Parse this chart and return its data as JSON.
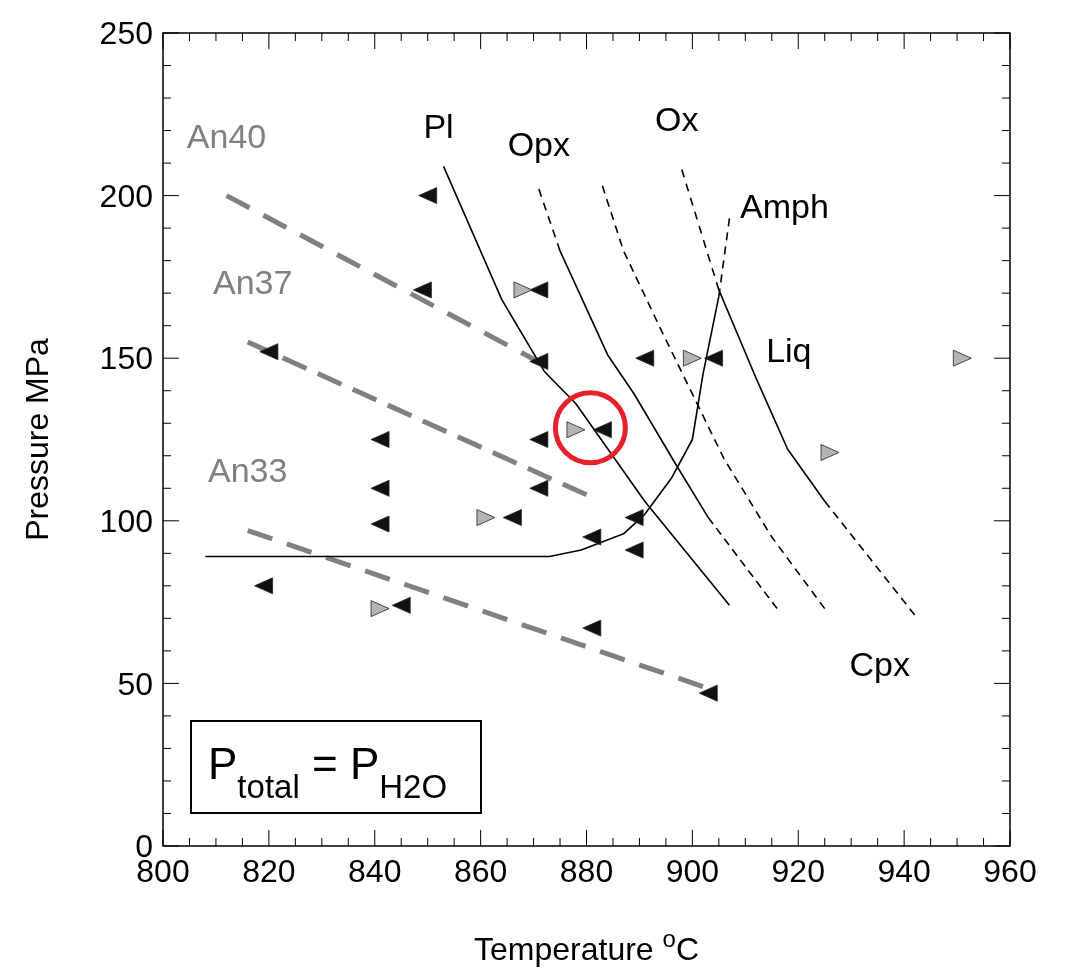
{
  "chart_data": {
    "type": "scatter",
    "xlabel": "Temperature $^{o}$C",
    "ylabel": "Pressure MPa",
    "xlim": [
      800,
      960
    ],
    "ylim": [
      0,
      250
    ],
    "xticks": [
      800,
      {
        "value": 805,
        "label": null
      },
      {
        "value": 810,
        "label": null
      },
      {
        "value": 815,
        "label": null
      },
      820,
      {
        "value": 825,
        "label": null
      },
      {
        "value": 830,
        "label": null
      },
      {
        "value": 835,
        "label": null
      },
      840,
      {
        "value": 845,
        "label": null
      },
      {
        "value": 850,
        "label": null
      },
      {
        "value": 855,
        "label": null
      },
      860,
      {
        "value": 865,
        "label": null
      },
      {
        "value": 870,
        "label": null
      },
      {
        "value": 875,
        "label": null
      },
      880,
      {
        "value": 885,
        "label": null
      },
      {
        "value": 890,
        "label": null
      },
      {
        "value": 895,
        "label": null
      },
      900,
      {
        "value": 905,
        "label": null
      },
      {
        "value": 910,
        "label": null
      },
      {
        "value": 915,
        "label": null
      },
      920,
      {
        "value": 925,
        "label": null
      },
      {
        "value": 930,
        "label": null
      },
      {
        "value": 935,
        "label": null
      },
      940,
      {
        "value": 945,
        "label": null
      },
      {
        "value": 950,
        "label": null
      },
      {
        "value": 955,
        "label": null
      },
      960
    ],
    "yticks": [
      0,
      {
        "value": 10,
        "label": null
      },
      {
        "value": 20,
        "label": null
      },
      {
        "value": 30,
        "label": null
      },
      {
        "value": 40,
        "label": null
      },
      50,
      {
        "value": 60,
        "label": null
      },
      {
        "value": 70,
        "label": null
      },
      {
        "value": 80,
        "label": null
      },
      {
        "value": 90,
        "label": null
      },
      100,
      {
        "value": 110,
        "label": null
      },
      {
        "value": 120,
        "label": null
      },
      {
        "value": 130,
        "label": null
      },
      {
        "value": 140,
        "label": null
      },
      150,
      {
        "value": 160,
        "label": null
      },
      {
        "value": 170,
        "label": null
      },
      {
        "value": 180,
        "label": null
      },
      {
        "value": 190,
        "label": null
      },
      200,
      {
        "value": 210,
        "label": null
      },
      {
        "value": 220,
        "label": null
      },
      {
        "value": 230,
        "label": null
      },
      {
        "value": 240,
        "label": null
      },
      250
    ],
    "grid": false,
    "series": [
      {
        "marker": "triangle",
        "color": "#111111",
        "x": [
          850,
          849,
          871,
          871,
          820,
          841,
          871,
          883,
          841,
          871,
          841,
          866,
          881,
          889,
          889,
          891,
          904,
          819,
          845,
          881,
          903
        ],
        "values": [
          200,
          171,
          171,
          149,
          152,
          125,
          125,
          128,
          110,
          110,
          99,
          101,
          95,
          101,
          91,
          150,
          150,
          80,
          74,
          67,
          47
        ]
      },
      {
        "marker": "triangle",
        "color": "#b4b4b4",
        "x": [
          868,
          878,
          861,
          841,
          900,
          951,
          926
        ],
        "values": [
          171,
          128,
          101,
          73,
          150,
          150,
          121
        ]
      },
      {
        "type": "line",
        "color": "#808080",
        "line_style": "dashed",
        "x": [
          812,
          872
        ],
        "values": [
          200,
          148
        ]
      },
      {
        "type": "line",
        "color": "#808080",
        "line_style": "dashed",
        "x": [
          816,
          880
        ],
        "values": [
          155,
          108
        ]
      },
      {
        "type": "line",
        "color": "#808080",
        "line_style": "dashed",
        "x": [
          816,
          902
        ],
        "values": [
          97,
          49
        ]
      },
      {
        "type": "line",
        "color": "#000000",
        "line_style": "solid",
        "x": [
          853,
          864,
          872,
          878,
          891,
          907
        ],
        "values": [
          209,
          168,
          146,
          136,
          106,
          74
        ]
      },
      {
        "type": "line",
        "color": "#000000",
        "line_style": "dashed",
        "x": [
          871,
          875
        ],
        "values": [
          202,
          183
        ]
      },
      {
        "type": "line",
        "color": "#000000",
        "line_style": "solid",
        "x": [
          875,
          884,
          889,
          897,
          903
        ],
        "values": [
          183,
          151,
          139,
          117,
          101
        ]
      },
      {
        "type": "line",
        "color": "#000000",
        "line_style": "dashed",
        "x": [
          903,
          916
        ],
        "values": [
          101,
          73
        ]
      },
      {
        "type": "line",
        "color": "#000000",
        "line_style": "dashed",
        "x": [
          883,
          887,
          894,
          900,
          906,
          915,
          925
        ],
        "values": [
          203,
          183,
          159,
          139,
          119,
          95,
          73
        ]
      },
      {
        "type": "line",
        "color": "#000000",
        "line_style": "dashed",
        "x": [
          898,
          905
        ],
        "values": [
          208,
          171
        ]
      },
      {
        "type": "line",
        "color": "#000000",
        "line_style": "solid",
        "x": [
          905,
          912,
          918,
          925
        ],
        "values": [
          171,
          144,
          122,
          106
        ]
      },
      {
        "type": "line",
        "color": "#000000",
        "line_style": "dashed",
        "x": [
          925,
          942
        ],
        "values": [
          106,
          71
        ]
      },
      {
        "type": "line",
        "color": "#000000",
        "line_style": "solid",
        "x": [
          808,
          873,
          879,
          887,
          891,
          896,
          900,
          902,
          905
        ],
        "values": [
          89,
          89,
          91,
          96,
          102,
          113,
          125,
          145,
          169
        ]
      },
      {
        "type": "line",
        "color": "#000000",
        "line_style": "dashed",
        "x": [
          905,
          907
        ],
        "values": [
          169,
          193
        ]
      }
    ],
    "annotations": [
      "An40",
      "An37",
      "An33",
      "Pl",
      "Opx",
      "Ox",
      "Amph",
      "Liq",
      "Cpx",
      "P$_{total}$ = P$_{H2O}$"
    ]
  }
}
